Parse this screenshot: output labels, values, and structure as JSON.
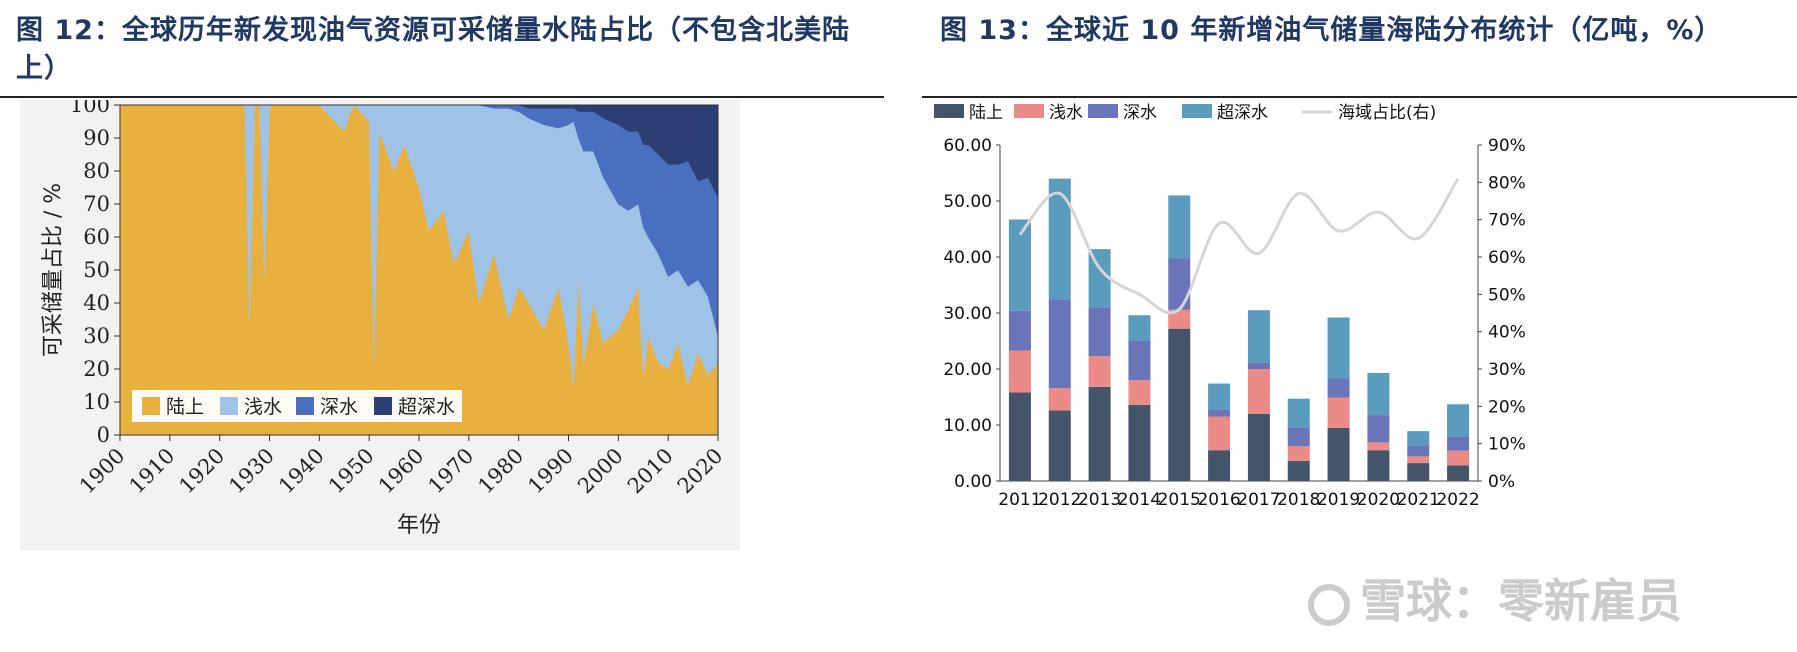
{
  "left_title": "图 12：全球历年新发现油气资源可采储量水陆占比（不包含北美陆上）",
  "right_title": "图 13：全球近 10 年新增油气储量海陆分布统计（亿吨，%）",
  "watermark": "雪球：零新雇员",
  "chart_data": [
    {
      "type": "area",
      "title": "",
      "xlabel": "年份",
      "ylabel": "可采储量占比 / %",
      "xlim": [
        1900,
        2020
      ],
      "ylim": [
        0,
        100
      ],
      "x_ticks": [
        1900,
        1910,
        1920,
        1930,
        1940,
        1950,
        1960,
        1970,
        1980,
        1990,
        2000,
        2010,
        2020
      ],
      "y_ticks": [
        0,
        10,
        20,
        30,
        40,
        50,
        60,
        70,
        80,
        90,
        100
      ],
      "stacked": true,
      "legend_position": "bottom-left",
      "x": [
        1900,
        1925,
        1926,
        1927,
        1928,
        1929,
        1930,
        1932,
        1940,
        1945,
        1946,
        1947,
        1950,
        1951,
        1952,
        1955,
        1957,
        1960,
        1962,
        1965,
        1967,
        1970,
        1972,
        1975,
        1978,
        1980,
        1982,
        1985,
        1988,
        1990,
        1991,
        1992,
        1993,
        1995,
        1997,
        2000,
        2002,
        2004,
        2005,
        2006,
        2008,
        2010,
        2012,
        2014,
        2016,
        2018,
        2020
      ],
      "series": [
        {
          "name": "陆上",
          "color": "#e8b03f",
          "values": [
            100,
            100,
            35,
            100,
            100,
            48,
            100,
            100,
            100,
            92,
            97,
            100,
            95,
            22,
            92,
            80,
            88,
            75,
            62,
            68,
            52,
            62,
            40,
            55,
            35,
            45,
            40,
            32,
            45,
            28,
            15,
            48,
            22,
            40,
            28,
            32,
            38,
            45,
            18,
            30,
            22,
            20,
            28,
            15,
            25,
            18,
            22
          ]
        },
        {
          "name": "浅水",
          "color": "#9fc3e7",
          "values": [
            0,
            0,
            65,
            0,
            0,
            52,
            0,
            0,
            0,
            8,
            3,
            0,
            5,
            78,
            8,
            20,
            12,
            25,
            38,
            32,
            48,
            38,
            60,
            44,
            64,
            53,
            56,
            62,
            48,
            66,
            80,
            42,
            64,
            46,
            50,
            38,
            30,
            25,
            45,
            30,
            33,
            28,
            22,
            30,
            22,
            24,
            8
          ]
        },
        {
          "name": "深水",
          "color": "#4a6fbf",
          "values": [
            0,
            0,
            0,
            0,
            0,
            0,
            0,
            0,
            0,
            0,
            0,
            0,
            0,
            0,
            0,
            0,
            0,
            0,
            0,
            0,
            0,
            0,
            0,
            1,
            1,
            2,
            3,
            5,
            6,
            5,
            4,
            8,
            12,
            12,
            18,
            24,
            24,
            22,
            25,
            28,
            30,
            34,
            32,
            38,
            30,
            36,
            42
          ]
        },
        {
          "name": "超深水",
          "color": "#2b3f75",
          "values": [
            0,
            0,
            0,
            0,
            0,
            0,
            0,
            0,
            0,
            0,
            0,
            0,
            0,
            0,
            0,
            0,
            0,
            0,
            0,
            0,
            0,
            0,
            0,
            0,
            0,
            0,
            1,
            1,
            1,
            1,
            1,
            2,
            2,
            2,
            4,
            6,
            8,
            8,
            12,
            12,
            15,
            18,
            18,
            17,
            23,
            22,
            28
          ]
        }
      ]
    },
    {
      "type": "bar",
      "title": "",
      "stacked": true,
      "categories": [
        "2011",
        "2012",
        "2013",
        "2014",
        "2015",
        "2016",
        "2017",
        "2018",
        "2019",
        "2020",
        "2021",
        "2022"
      ],
      "ylim": [
        0,
        60
      ],
      "y_ticks": [
        "0.00",
        "10.00",
        "20.00",
        "30.00",
        "40.00",
        "50.00",
        "60.00"
      ],
      "y2lim": [
        0,
        90
      ],
      "y2_ticks": [
        "0%",
        "10%",
        "20%",
        "30%",
        "40%",
        "50%",
        "60%",
        "70%",
        "80%",
        "90%"
      ],
      "legend_position": "top",
      "series": [
        {
          "name": "陆上",
          "color": "#44546a",
          "values": [
            15.8,
            12.6,
            16.8,
            13.6,
            27.2,
            5.5,
            12.0,
            3.6,
            9.5,
            5.5,
            3.2,
            2.8
          ]
        },
        {
          "name": "浅水",
          "color": "#ea8b88",
          "values": [
            7.5,
            4.0,
            5.5,
            4.4,
            3.4,
            6.0,
            8.0,
            2.6,
            5.4,
            1.4,
            1.2,
            2.6
          ]
        },
        {
          "name": "深水",
          "color": "#6a74b8",
          "values": [
            7.1,
            15.8,
            8.7,
            7.0,
            9.2,
            1.3,
            1.2,
            3.4,
            3.4,
            4.8,
            2.0,
            2.6
          ]
        },
        {
          "name": "超深水",
          "color": "#5b9bbe",
          "values": [
            16.3,
            21.6,
            10.4,
            4.6,
            11.2,
            4.6,
            9.3,
            5.1,
            10.9,
            7.6,
            2.5,
            5.7
          ]
        },
        {
          "name": "海域占比(右)",
          "color": "#d6d6d6",
          "type": "line",
          "axis": "right",
          "values": [
            66,
            77,
            57,
            50,
            46,
            69,
            61,
            77,
            67,
            72,
            65,
            81
          ]
        }
      ]
    }
  ]
}
